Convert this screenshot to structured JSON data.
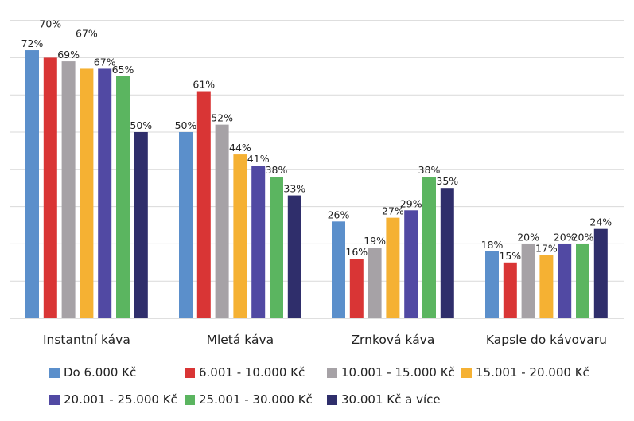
{
  "chart_data": {
    "type": "bar",
    "categories": [
      "Instantní káva",
      "Mletá káva",
      "Zrnková káva",
      "Kapsle do kávovaru"
    ],
    "series": [
      {
        "name": "Do 6.000 Kč",
        "color": "#5b8fcb",
        "values": [
          72,
          50,
          26,
          18
        ]
      },
      {
        "name": "6.001 - 10.000 Kč",
        "color": "#d93535",
        "values": [
          70,
          61,
          16,
          15
        ]
      },
      {
        "name": "10.001 - 15.000 Kč",
        "color": "#a6a2a6",
        "values": [
          69,
          52,
          19,
          20
        ]
      },
      {
        "name": "15.001 - 20.000 Kč",
        "color": "#f5b133",
        "values": [
          67,
          44,
          27,
          17
        ]
      },
      {
        "name": "20.001 - 25.000 Kč",
        "color": "#5149a3",
        "values": [
          67,
          41,
          29,
          20
        ]
      },
      {
        "name": "25.001 - 30.000 Kč",
        "color": "#5bb560",
        "values": [
          65,
          38,
          38,
          20
        ]
      },
      {
        "name": "30.001 Kč a více",
        "color": "#2f2e6b",
        "values": [
          50,
          33,
          35,
          24
        ]
      }
    ],
    "data_labels": [
      [
        "72%",
        "50%",
        "26%",
        "18%"
      ],
      [
        "70%",
        "61%",
        "16%",
        "15%"
      ],
      [
        "69%",
        "52%",
        "19%",
        "20%"
      ],
      [
        "67%",
        "44%",
        "27%",
        "17%"
      ],
      [
        "67%",
        "41%",
        "29%",
        "20%"
      ],
      [
        "65%",
        "38%",
        "38%",
        "20%"
      ],
      [
        "50%",
        "33%",
        "35%",
        "24%"
      ]
    ],
    "ylim": [
      0,
      80
    ],
    "y_gridline_step": 10,
    "grid": true,
    "legend_position": "bottom",
    "title": "",
    "xlabel": "",
    "ylabel": ""
  }
}
